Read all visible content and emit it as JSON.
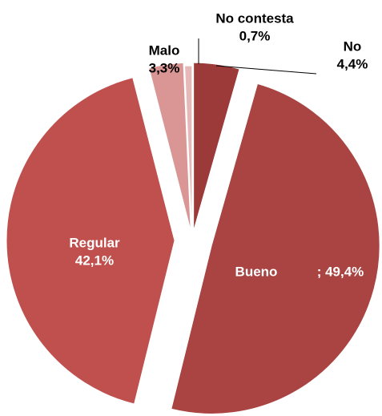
{
  "chart_data": {
    "type": "pie",
    "categories": [
      "No",
      "Bueno",
      "Regular",
      "Malo",
      "No contesta"
    ],
    "values": [
      4.4,
      49.4,
      42.1,
      3.3,
      0.7
    ],
    "value_labels": [
      "4,4%",
      "; 49,4%",
      "42,1%",
      "3,3%",
      "0,7%"
    ],
    "colors": [
      "#9b3a38",
      "#a94442",
      "#c0504d",
      "#d99694",
      "#e6b9b8"
    ]
  }
}
